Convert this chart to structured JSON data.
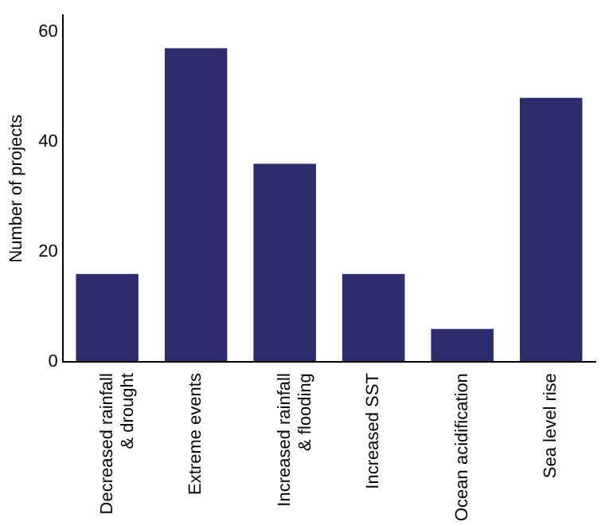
{
  "chart_data": {
    "type": "bar",
    "ylabel": "Number of projects",
    "categories": [
      "Decreased rainfall\n& drought",
      "Extreme events",
      "Increased rainfall\n& flooding",
      "Increased SST",
      "Ocean acidification",
      "Sea level rise"
    ],
    "values": [
      16,
      57,
      36,
      16,
      6,
      48
    ],
    "color": "#2e2e6e",
    "ylim": [
      0,
      63
    ],
    "yticks": [
      0,
      20,
      40,
      60
    ],
    "grid": false,
    "legend": false
  }
}
